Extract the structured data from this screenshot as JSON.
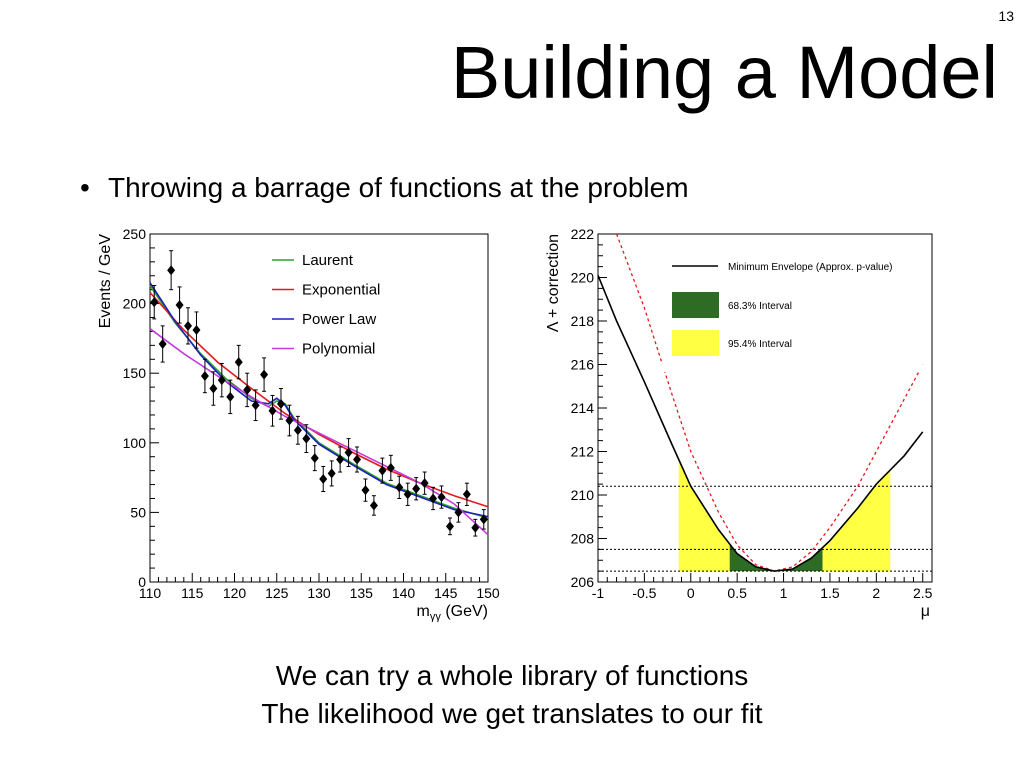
{
  "slide": {
    "number": "13",
    "title": "Building a Model",
    "bullet": "Throwing a barrage of functions at the problem",
    "footer": [
      "We can try a whole library of functions",
      "The likelihood we get translates to our fit"
    ]
  },
  "chart_data": [
    {
      "type": "scatter",
      "title": "",
      "xlabel": "m",
      "xlabel_sub": "γγ",
      "xlabel_unit": " (GeV)",
      "ylabel": "Events / GeV",
      "xlim": [
        110,
        150
      ],
      "ylim": [
        0,
        250
      ],
      "xticks": [
        110,
        115,
        120,
        125,
        130,
        135,
        140,
        145,
        150
      ],
      "yticks": [
        0,
        50,
        100,
        150,
        200,
        250
      ],
      "grid": false,
      "legend_position": "top-right",
      "points": [
        {
          "x": 110.5,
          "y": 201,
          "err": 12
        },
        {
          "x": 111.5,
          "y": 171,
          "err": 13
        },
        {
          "x": 112.5,
          "y": 224,
          "err": 14
        },
        {
          "x": 113.5,
          "y": 199,
          "err": 13
        },
        {
          "x": 114.5,
          "y": 184,
          "err": 13
        },
        {
          "x": 115.5,
          "y": 181,
          "err": 13
        },
        {
          "x": 116.5,
          "y": 148,
          "err": 12
        },
        {
          "x": 117.5,
          "y": 139,
          "err": 12
        },
        {
          "x": 118.5,
          "y": 145,
          "err": 12
        },
        {
          "x": 119.5,
          "y": 133,
          "err": 12
        },
        {
          "x": 120.5,
          "y": 158,
          "err": 12
        },
        {
          "x": 121.5,
          "y": 138,
          "err": 12
        },
        {
          "x": 122.5,
          "y": 127,
          "err": 11
        },
        {
          "x": 123.5,
          "y": 149,
          "err": 12
        },
        {
          "x": 124.5,
          "y": 123,
          "err": 11
        },
        {
          "x": 125.5,
          "y": 128,
          "err": 11
        },
        {
          "x": 126.5,
          "y": 116,
          "err": 11
        },
        {
          "x": 127.5,
          "y": 109,
          "err": 10
        },
        {
          "x": 128.5,
          "y": 103,
          "err": 10
        },
        {
          "x": 129.5,
          "y": 89,
          "err": 9
        },
        {
          "x": 130.5,
          "y": 74,
          "err": 9
        },
        {
          "x": 131.5,
          "y": 78,
          "err": 9
        },
        {
          "x": 132.5,
          "y": 88,
          "err": 9
        },
        {
          "x": 133.5,
          "y": 93,
          "err": 10
        },
        {
          "x": 134.5,
          "y": 88,
          "err": 9
        },
        {
          "x": 135.5,
          "y": 66,
          "err": 8
        },
        {
          "x": 136.5,
          "y": 55,
          "err": 7
        },
        {
          "x": 137.5,
          "y": 80,
          "err": 9
        },
        {
          "x": 138.5,
          "y": 82,
          "err": 9
        },
        {
          "x": 139.5,
          "y": 68,
          "err": 8
        },
        {
          "x": 140.5,
          "y": 63,
          "err": 8
        },
        {
          "x": 141.5,
          "y": 67,
          "err": 8
        },
        {
          "x": 142.5,
          "y": 71,
          "err": 8
        },
        {
          "x": 143.5,
          "y": 60,
          "err": 8
        },
        {
          "x": 144.5,
          "y": 61,
          "err": 8
        },
        {
          "x": 145.5,
          "y": 40,
          "err": 6
        },
        {
          "x": 146.5,
          "y": 50,
          "err": 7
        },
        {
          "x": 147.5,
          "y": 63,
          "err": 8
        },
        {
          "x": 148.5,
          "y": 39,
          "err": 6
        },
        {
          "x": 149.5,
          "y": 45,
          "err": 7
        }
      ],
      "series": [
        {
          "name": "Laurent",
          "color": "#2ca02c",
          "x": [
            110,
            113,
            116,
            119,
            122,
            124,
            125,
            126,
            127,
            130,
            134,
            138,
            142,
            146,
            150
          ],
          "y": [
            213,
            186,
            164,
            146,
            132,
            126,
            130,
            128,
            118,
            100,
            85,
            71,
            62,
            53,
            46
          ]
        },
        {
          "name": "Exponential",
          "color": "#e41a1c",
          "x": [
            110,
            114,
            118,
            122,
            126,
            130,
            134,
            138,
            142,
            146,
            150
          ],
          "y": [
            208,
            181,
            158,
            139,
            121,
            106,
            93,
            81,
            71,
            62,
            54
          ]
        },
        {
          "name": "Power Law",
          "color": "#1f1fbf",
          "x": [
            110,
            113,
            116,
            119,
            122,
            124,
            125,
            126,
            127,
            130,
            134,
            138,
            142,
            146,
            150
          ],
          "y": [
            215,
            187,
            163,
            144,
            130,
            128,
            132,
            127,
            117,
            99,
            84,
            70,
            61,
            52,
            47
          ]
        },
        {
          "name": "Polynomial",
          "color": "#c43cdc",
          "x": [
            110,
            114,
            118,
            122,
            126,
            130,
            134,
            138,
            142,
            146,
            150
          ],
          "y": [
            182,
            164,
            148,
            133,
            119,
            107,
            95,
            83,
            71,
            56,
            34
          ]
        }
      ]
    },
    {
      "type": "line",
      "title": "",
      "xlabel": "μ",
      "ylabel": "Λ + correction",
      "xlim": [
        -1,
        2.6
      ],
      "ylim": [
        206,
        222
      ],
      "xticks": [
        -1,
        -0.5,
        0,
        0.5,
        1,
        1.5,
        2,
        2.5
      ],
      "xtick_labels": [
        "-1",
        "-0.5",
        "0",
        "0.5",
        "1",
        "1.5",
        "2",
        "2.5"
      ],
      "yticks": [
        206,
        208,
        210,
        212,
        214,
        216,
        218,
        220,
        222
      ],
      "grid": false,
      "legend_position": "top-right",
      "legend": [
        {
          "label": "Minimum Envelope (Approx. p-value)",
          "type": "line",
          "color": "#000000"
        },
        {
          "label": "68.3% Interval",
          "type": "box",
          "color": "#2e6b24"
        },
        {
          "label": "95.4% Interval",
          "type": "box",
          "color": "#ffff44"
        }
      ],
      "envelope": {
        "color": "#000000",
        "x": [
          -1,
          -0.8,
          -0.5,
          -0.2,
          0,
          0.3,
          0.5,
          0.7,
          0.9,
          1.1,
          1.3,
          1.5,
          1.8,
          2.0,
          2.3,
          2.5
        ],
        "y": [
          220.1,
          218.0,
          215.2,
          212.3,
          210.4,
          208.4,
          207.3,
          206.7,
          206.5,
          206.6,
          207.1,
          207.9,
          209.4,
          210.5,
          211.8,
          212.9
        ]
      },
      "other_curve": {
        "color": "#e41a1c",
        "style": "dashed",
        "x": [
          -0.8,
          -0.5,
          -0.2,
          0,
          0.3,
          0.5,
          0.7,
          0.9,
          1.1,
          1.3,
          1.5,
          1.8,
          2.0,
          2.2,
          2.5
        ],
        "y": [
          222,
          218.6,
          214.6,
          212.0,
          209.2,
          207.7,
          206.8,
          206.5,
          206.7,
          207.4,
          208.5,
          210.4,
          212.0,
          213.6,
          216.0
        ]
      },
      "reference_levels": [
        206.5,
        207.5,
        210.4
      ],
      "interval_68": [
        0.42,
        1.42
      ],
      "interval_95": [
        -0.13,
        2.15
      ]
    }
  ]
}
